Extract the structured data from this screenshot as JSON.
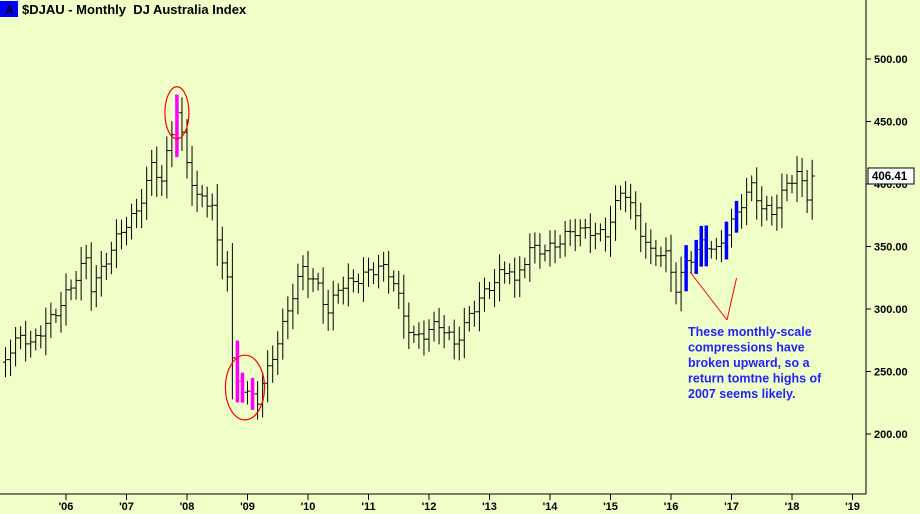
{
  "header": {
    "badge": "A",
    "title": "$DJAU - Monthly  DJ Australia Index"
  },
  "colors": {
    "background": "#f0ffc8",
    "bar": "#000000",
    "highlight_top": "#ff00ff",
    "highlight_blue": "#0000ff",
    "annotation_text": "#2222ff",
    "annotation_line": "#ff0000",
    "badge_bg": "#0000ff"
  },
  "annotation": {
    "lines": [
      "These monthly-scale",
      "compressions have",
      "broken upward, so a",
      "return tomtne highs of",
      "2007 seems likely."
    ]
  },
  "last_price": {
    "label": "406.41"
  },
  "chart_data": {
    "type": "ohlc",
    "title": "$DJAU - Monthly  DJ Australia Index",
    "frequency": "monthly",
    "y_axis": {
      "side": "right",
      "ticks": [
        "500.00",
        "450.00",
        "400.00",
        "350.00",
        "300.00",
        "250.00",
        "200.00"
      ],
      "tick_values": [
        500,
        450,
        400,
        350,
        300,
        250,
        200
      ],
      "ylim": [
        143,
        535
      ]
    },
    "x_axis": {
      "ticks": [
        "'06",
        "'07",
        "'08",
        "'09",
        "'10",
        "'11",
        "'12",
        "'13",
        "'14",
        "'15",
        "'16",
        "'17",
        "'18",
        "'19"
      ],
      "xlim": [
        "2005-01",
        "2019-03"
      ]
    },
    "grid": false,
    "last_value": 406.41,
    "anchor_path": [
      [
        "2005-01",
        265
      ],
      [
        "2005-04",
        278
      ],
      [
        "2005-06",
        268
      ],
      [
        "2005-09",
        290
      ],
      [
        "2005-11",
        300
      ],
      [
        "2006-02",
        315
      ],
      [
        "2006-05",
        340
      ],
      [
        "2006-06",
        320
      ],
      [
        "2006-09",
        340
      ],
      [
        "2006-12",
        360
      ],
      [
        "2007-03",
        380
      ],
      [
        "2007-06",
        415
      ],
      [
        "2007-08",
        400
      ],
      [
        "2007-10",
        440
      ],
      [
        "2007-11",
        460
      ],
      [
        "2008-01",
        420
      ],
      [
        "2008-03",
        390
      ],
      [
        "2008-06",
        380
      ],
      [
        "2008-07",
        350
      ],
      [
        "2008-09",
        330
      ],
      [
        "2008-10",
        260
      ],
      [
        "2008-11",
        245
      ],
      [
        "2009-01",
        230
      ],
      [
        "2009-03",
        225
      ],
      [
        "2009-06",
        265
      ],
      [
        "2009-09",
        300
      ],
      [
        "2009-12",
        330
      ],
      [
        "2010-03",
        320
      ],
      [
        "2010-05",
        300
      ],
      [
        "2010-07",
        315
      ],
      [
        "2010-10",
        320
      ],
      [
        "2010-12",
        330
      ],
      [
        "2011-03",
        335
      ],
      [
        "2011-06",
        320
      ],
      [
        "2011-08",
        295
      ],
      [
        "2011-10",
        280
      ],
      [
        "2011-12",
        280
      ],
      [
        "2012-03",
        285
      ],
      [
        "2012-06",
        275
      ],
      [
        "2012-09",
        295
      ],
      [
        "2012-12",
        310
      ],
      [
        "2013-03",
        330
      ],
      [
        "2013-05",
        335
      ],
      [
        "2013-06",
        320
      ],
      [
        "2013-09",
        345
      ],
      [
        "2013-12",
        350
      ],
      [
        "2014-03",
        355
      ],
      [
        "2014-06",
        360
      ],
      [
        "2014-09",
        365
      ],
      [
        "2014-12",
        360
      ],
      [
        "2015-03",
        390
      ],
      [
        "2015-04",
        392
      ],
      [
        "2015-06",
        375
      ],
      [
        "2015-09",
        345
      ],
      [
        "2015-12",
        340
      ],
      [
        "2016-02",
        318
      ],
      [
        "2016-04",
        340
      ],
      [
        "2016-07",
        350
      ],
      [
        "2016-10",
        345
      ],
      [
        "2016-12",
        365
      ],
      [
        "2017-03",
        385
      ],
      [
        "2017-05",
        395
      ],
      [
        "2017-07",
        380
      ],
      [
        "2017-09",
        380
      ],
      [
        "2017-12",
        400
      ],
      [
        "2018-02",
        405
      ],
      [
        "2018-04",
        390
      ],
      [
        "2018-05",
        406.41
      ]
    ],
    "highlights": [
      {
        "name": "2007 top",
        "color": "magenta",
        "months": [
          "2007-11"
        ],
        "circled": true
      },
      {
        "name": "2008-09 low",
        "color": "magenta",
        "months": [
          "2008-11",
          "2008-12",
          "2009-02"
        ],
        "circled": true
      },
      {
        "name": "compressions",
        "color": "blue",
        "months": [
          "2016-04",
          "2016-06",
          "2016-07",
          "2016-08",
          "2016-12",
          "2017-02"
        ],
        "circled": false
      }
    ]
  }
}
